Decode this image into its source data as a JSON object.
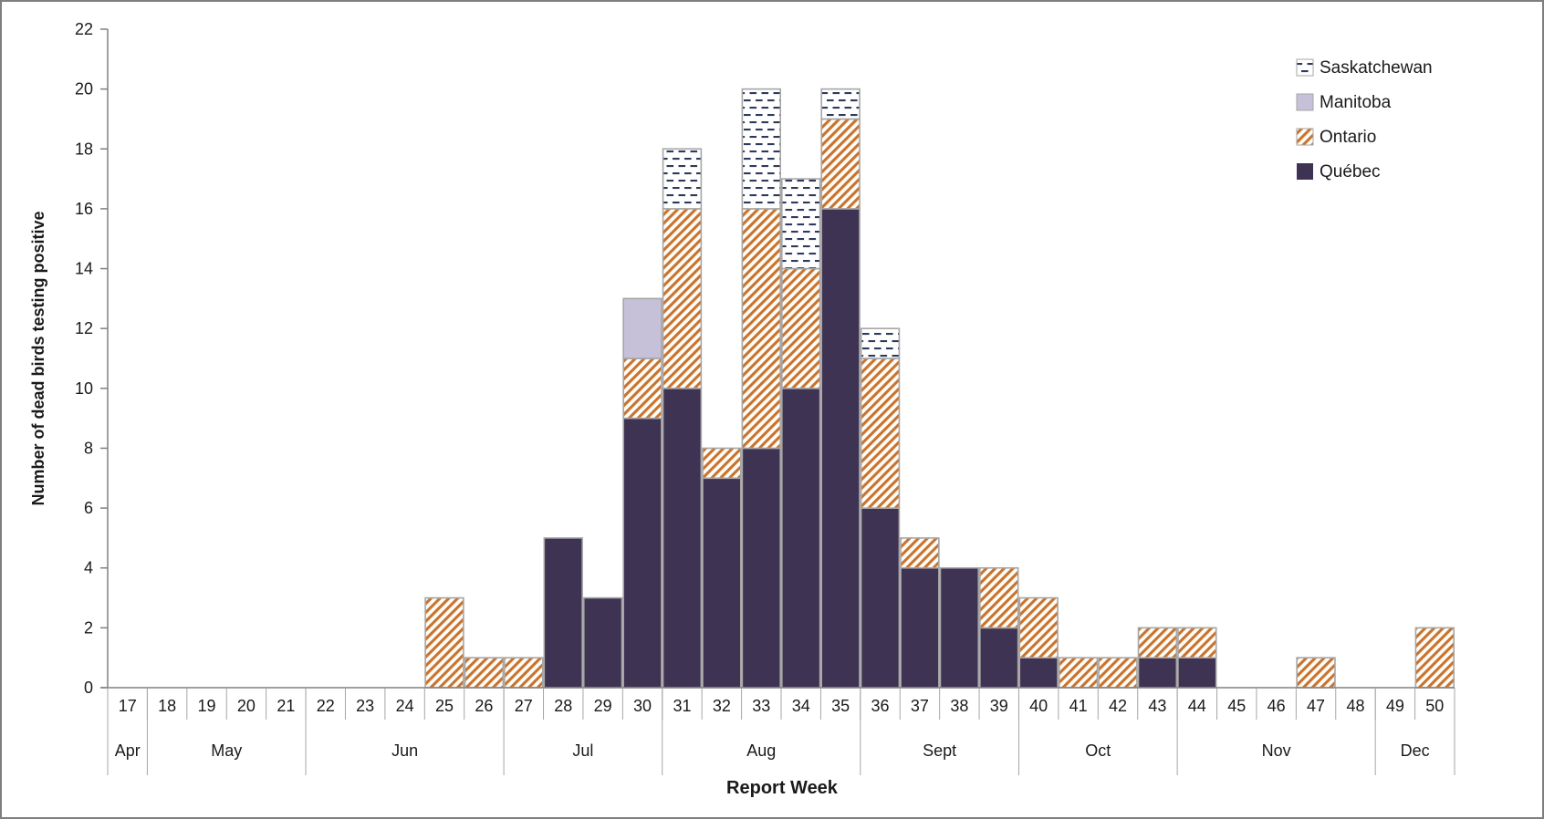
{
  "chart_data": {
    "type": "bar",
    "stacked": true,
    "title": "",
    "xlabel": "Report Week",
    "ylabel": "Number of dead birds testing positive",
    "ylim": [
      0,
      22
    ],
    "ytick_step": 2,
    "grid": false,
    "legend_position": "top-right",
    "categories": [
      17,
      18,
      19,
      20,
      21,
      22,
      23,
      24,
      25,
      26,
      27,
      28,
      29,
      30,
      31,
      32,
      33,
      34,
      35,
      36,
      37,
      38,
      39,
      40,
      41,
      42,
      43,
      44,
      45,
      46,
      47,
      48,
      49,
      50
    ],
    "series": [
      {
        "name": "Québec",
        "pattern": "solid",
        "values": [
          0,
          0,
          0,
          0,
          0,
          0,
          0,
          0,
          0,
          0,
          0,
          5,
          3,
          9,
          10,
          7,
          8,
          10,
          16,
          6,
          4,
          4,
          2,
          1,
          0,
          0,
          1,
          1,
          0,
          0,
          0,
          0,
          0,
          0
        ]
      },
      {
        "name": "Ontario",
        "pattern": "diagonal-stripes",
        "values": [
          0,
          0,
          0,
          0,
          0,
          0,
          0,
          0,
          3,
          1,
          1,
          0,
          0,
          2,
          6,
          1,
          8,
          4,
          3,
          5,
          1,
          0,
          2,
          2,
          1,
          1,
          1,
          1,
          0,
          0,
          1,
          0,
          0,
          2
        ]
      },
      {
        "name": "Manitoba",
        "pattern": "solid",
        "values": [
          0,
          0,
          0,
          0,
          0,
          0,
          0,
          0,
          0,
          0,
          0,
          0,
          0,
          2,
          0,
          0,
          0,
          0,
          0,
          0,
          0,
          0,
          0,
          0,
          0,
          0,
          0,
          0,
          0,
          0,
          0,
          0,
          0,
          0
        ]
      },
      {
        "name": "Saskatchewan",
        "pattern": "horizontal-dashes",
        "values": [
          0,
          0,
          0,
          0,
          0,
          0,
          0,
          0,
          0,
          0,
          0,
          0,
          0,
          0,
          2,
          0,
          4,
          3,
          1,
          1,
          0,
          0,
          0,
          0,
          0,
          0,
          0,
          0,
          0,
          0,
          0,
          0,
          0,
          0
        ]
      }
    ],
    "stack_order_bottom_to_top": [
      "Québec",
      "Ontario",
      "Manitoba",
      "Saskatchewan"
    ],
    "months": [
      {
        "label": "Apr",
        "from": 17,
        "to": 17
      },
      {
        "label": "May",
        "from": 18,
        "to": 21
      },
      {
        "label": "Jun",
        "from": 22,
        "to": 26
      },
      {
        "label": "Jul",
        "from": 27,
        "to": 30
      },
      {
        "label": "Aug",
        "from": 31,
        "to": 35
      },
      {
        "label": "Sept",
        "from": 36,
        "to": 39
      },
      {
        "label": "Oct",
        "from": 40,
        "to": 43
      },
      {
        "label": "Nov",
        "from": 44,
        "to": 48
      },
      {
        "label": "Dec",
        "from": 49,
        "to": 50
      }
    ]
  },
  "legend": {
    "items": [
      {
        "label": "Saskatchewan",
        "series": "Saskatchewan"
      },
      {
        "label": "Manitoba",
        "series": "Manitoba"
      },
      {
        "label": "Ontario",
        "series": "Ontario"
      },
      {
        "label": "Québec",
        "series": "Québec"
      }
    ]
  },
  "colors": {
    "quebec_fill": "#3f3353",
    "manitoba_fill": "#c6c0d8",
    "ontario_stripe": "#c8732f",
    "ontario_bg": "#fffdf8",
    "saskatchewan_dash": "#2e3a5c",
    "saskatchewan_bg": "#ffffff",
    "bar_border": "#a6a6a6",
    "axis_line": "#808080",
    "separator_line": "#a6a6a6",
    "text": "#1a1a1a",
    "frame_border": "#7f7f7f"
  }
}
